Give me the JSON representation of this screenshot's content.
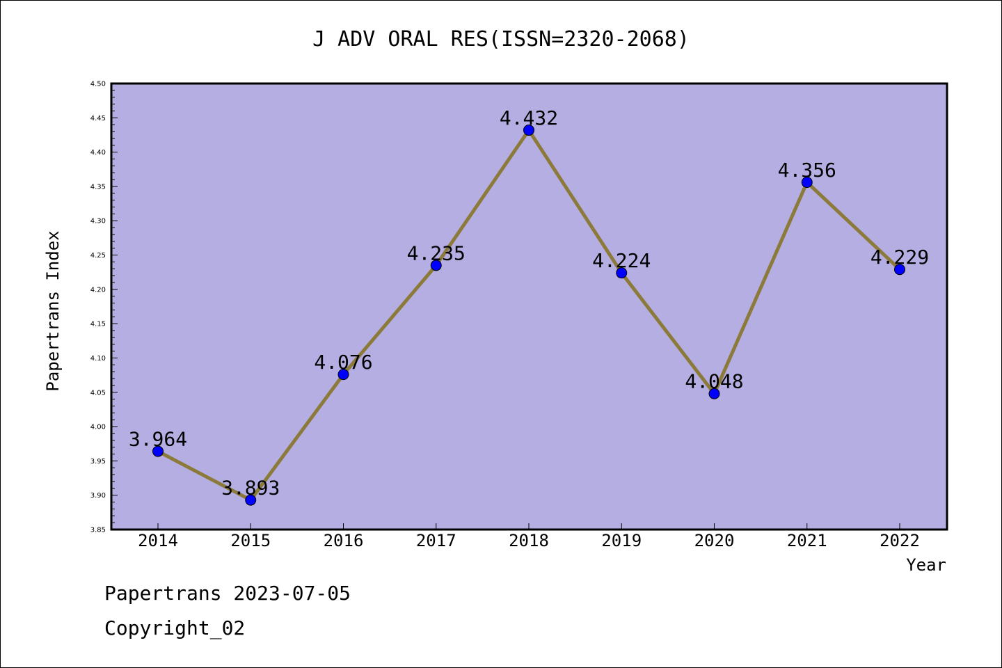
{
  "chart_data": {
    "type": "line",
    "title": "J ADV ORAL RES(ISSN=2320-2068)",
    "xlabel": "Year",
    "ylabel": "Papertrans Index",
    "categories": [
      "2014",
      "2015",
      "2016",
      "2017",
      "2018",
      "2019",
      "2020",
      "2021",
      "2022"
    ],
    "values": [
      3.964,
      3.893,
      4.076,
      4.235,
      4.432,
      4.224,
      4.048,
      4.356,
      4.229
    ],
    "data_labels": [
      "3.964",
      "3.893",
      "4.076",
      "4.235",
      "4.432",
      "4.224",
      "4.048",
      "4.356",
      "4.229"
    ],
    "ylim": [
      3.85,
      4.5
    ],
    "yticks": [
      "3.85",
      "3.90",
      "3.95",
      "4.00",
      "4.05",
      "4.10",
      "4.15",
      "4.20",
      "4.25",
      "4.30",
      "4.35",
      "4.40",
      "4.45",
      "4.50"
    ],
    "grid": false,
    "legend": "none",
    "colors": {
      "plot_background": "#b5aee2",
      "line": "#8b7a3a",
      "marker": "#0000ff",
      "axis": "#000000"
    }
  },
  "footer": {
    "source": "Papertrans 2023-07-05",
    "copyright": "Copyright_02"
  }
}
